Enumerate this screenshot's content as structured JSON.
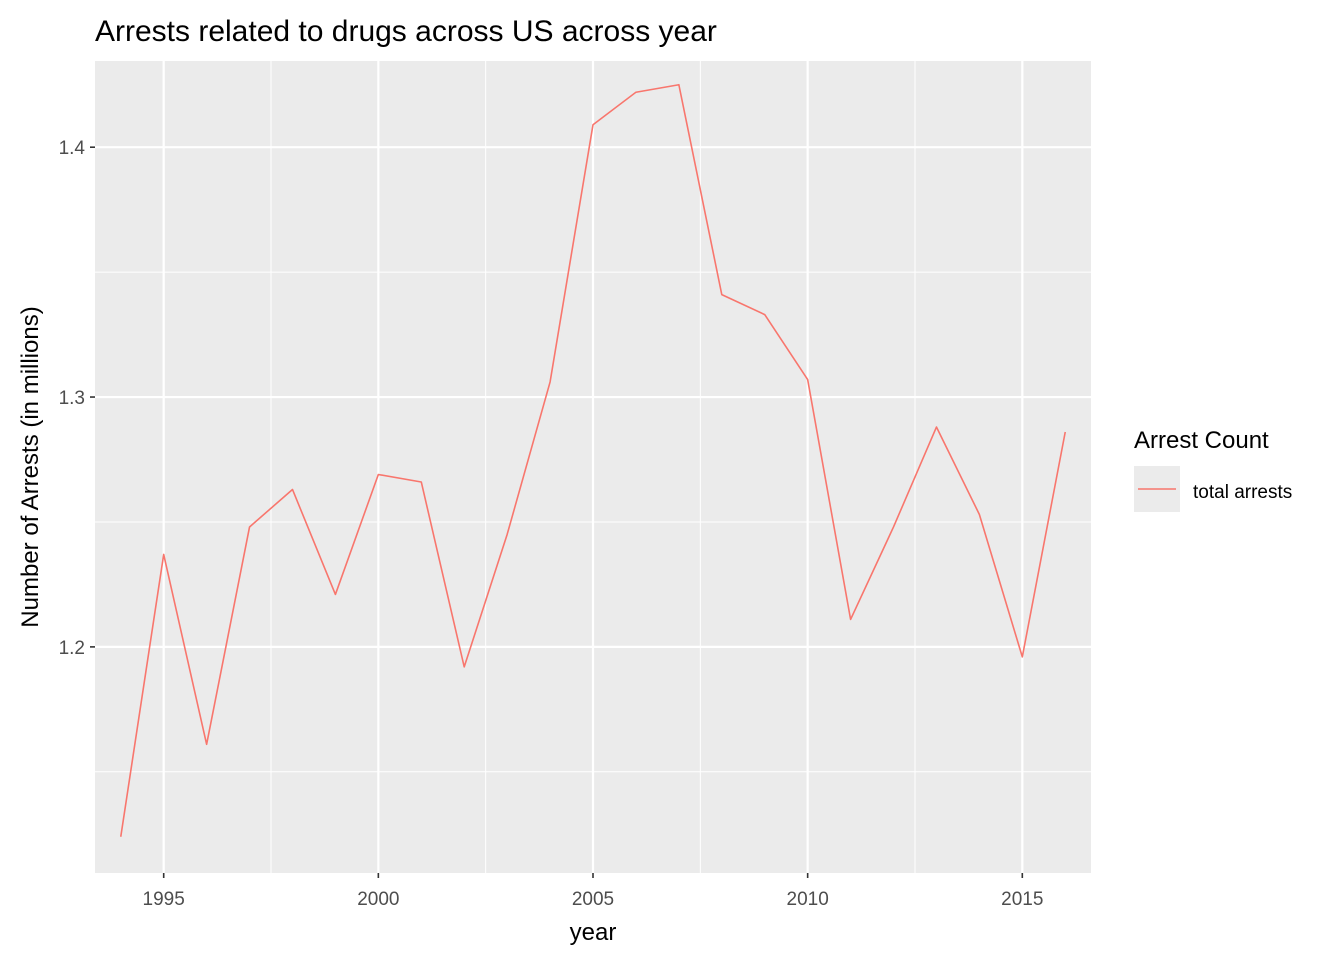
{
  "chart_data": {
    "type": "line",
    "title": "Arrests related to drugs across US across year",
    "xlabel": "year",
    "ylabel": "Number of Arrests (in millions)",
    "xlim": [
      1993.4,
      2016.6
    ],
    "ylim": [
      1.1095,
      1.4345
    ],
    "x_ticks": [
      1995,
      2000,
      2005,
      2010,
      2015
    ],
    "x_tick_labels": [
      "1995",
      "2000",
      "2005",
      "2010",
      "2015"
    ],
    "y_ticks": [
      1.2,
      1.3,
      1.4
    ],
    "y_tick_labels": [
      "1.2",
      "1.3",
      "1.4"
    ],
    "grid": true,
    "legend": {
      "title": "Arrest Count",
      "position": "right",
      "entries": [
        "total arrests"
      ]
    },
    "colors": {
      "line": "#f8766d",
      "panel": "#ebebeb",
      "grid": "#ffffff"
    },
    "series": [
      {
        "name": "total arrests",
        "x": [
          1994,
          1995,
          1996,
          1997,
          1998,
          1999,
          2000,
          2001,
          2002,
          2003,
          2004,
          2005,
          2006,
          2007,
          2008,
          2009,
          2010,
          2011,
          2012,
          2013,
          2014,
          2015,
          2016
        ],
        "values": [
          1.124,
          1.237,
          1.161,
          1.248,
          1.263,
          1.221,
          1.269,
          1.266,
          1.192,
          1.245,
          1.306,
          1.409,
          1.422,
          1.425,
          1.341,
          1.333,
          1.307,
          1.211,
          1.248,
          1.288,
          1.253,
          1.196,
          1.286
        ]
      }
    ]
  }
}
